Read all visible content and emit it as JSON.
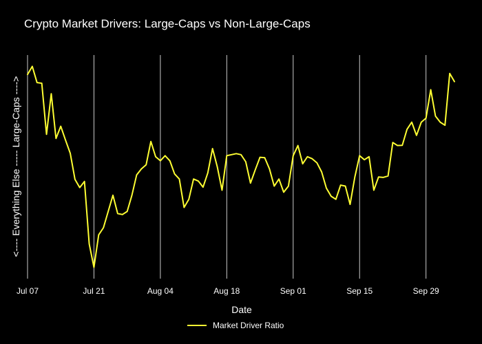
{
  "chart_data": {
    "type": "line",
    "title": "Crypto Market Drivers: Large-Caps vs Non-Large-Caps",
    "xlabel": "Date",
    "ylabel": "<---- Everything Else ----- Large-Caps ---->",
    "x_tick_labels": [
      "Jul 07",
      "Jul 21",
      "Aug 04",
      "Aug 18",
      "Sep 01",
      "Sep 15",
      "Sep 29"
    ],
    "x_tick_positions": [
      0,
      14,
      28,
      42,
      56,
      70,
      84
    ],
    "x_range": [
      0,
      90
    ],
    "ylim": [
      0,
      1
    ],
    "grid_x": true,
    "grid_y": false,
    "show_y_tick_labels": false,
    "legend_position": "bottom-center",
    "series": [
      {
        "name": "Market Driver Ratio",
        "color": "#ffff33",
        "x": [
          0,
          1,
          2,
          3,
          4,
          5,
          6,
          7,
          8,
          9,
          10,
          11,
          12,
          13,
          14,
          15,
          16,
          17,
          18,
          19,
          20,
          21,
          22,
          23,
          24,
          25,
          26,
          27,
          28,
          29,
          30,
          31,
          32,
          33,
          34,
          35,
          36,
          37,
          38,
          39,
          40,
          41,
          42,
          43,
          44,
          45,
          46,
          47,
          48,
          49,
          50,
          51,
          52,
          53,
          54,
          55,
          56,
          57,
          58,
          59,
          60,
          61,
          62,
          63,
          64,
          65,
          66,
          67,
          68,
          69,
          70,
          71,
          72,
          73,
          74,
          75,
          76,
          77,
          78,
          79,
          80,
          81,
          82,
          83,
          84,
          85,
          86,
          87,
          88,
          89,
          90
        ],
        "values": [
          0.955,
          0.995,
          0.915,
          0.912,
          0.66,
          0.86,
          0.64,
          0.7,
          0.632,
          0.567,
          0.438,
          0.398,
          0.428,
          0.12,
          0.005,
          0.165,
          0.2,
          0.28,
          0.36,
          0.27,
          0.265,
          0.28,
          0.36,
          0.46,
          0.49,
          0.51,
          0.625,
          0.55,
          0.53,
          0.555,
          0.53,
          0.465,
          0.44,
          0.3,
          0.34,
          0.44,
          0.43,
          0.4,
          0.47,
          0.59,
          0.5,
          0.385,
          0.555,
          0.56,
          0.565,
          0.56,
          0.525,
          0.42,
          0.485,
          0.547,
          0.545,
          0.49,
          0.405,
          0.44,
          0.375,
          0.405,
          0.555,
          0.605,
          0.515,
          0.55,
          0.54,
          0.52,
          0.475,
          0.395,
          0.355,
          0.34,
          0.41,
          0.405,
          0.315,
          0.45,
          0.555,
          0.535,
          0.55,
          0.385,
          0.45,
          0.448,
          0.455,
          0.62,
          0.605,
          0.606,
          0.685,
          0.72,
          0.655,
          0.72,
          0.74,
          0.88,
          0.75,
          0.72,
          0.705,
          0.96,
          0.92
        ]
      }
    ]
  }
}
